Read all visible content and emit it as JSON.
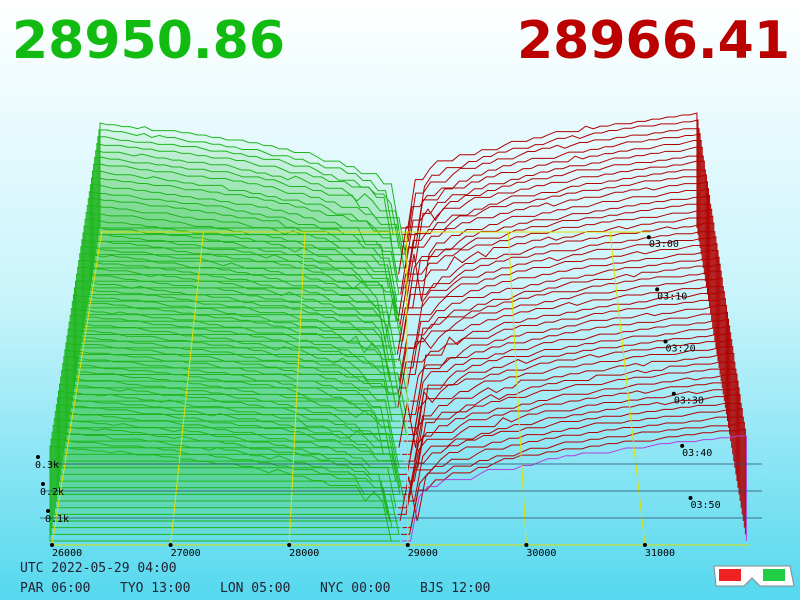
{
  "bid_price": "28950.86",
  "ask_price": "28966.41",
  "price_axis": {
    "xlim": [
      25983,
      31886
    ],
    "ticks": [
      26000,
      27000,
      28000,
      29000,
      30000,
      31000
    ]
  },
  "time_axis": {
    "ticks": [
      "03:00",
      "03:10",
      "03:20",
      "03:30",
      "03:40",
      "03:50"
    ]
  },
  "depth_axis": {
    "ticks": [
      {
        "value": 100,
        "label": "0.1k"
      },
      {
        "value": 200,
        "label": "0.2k"
      },
      {
        "value": 300,
        "label": "0.3k"
      }
    ]
  },
  "utc": "UTC 2022-05-29 04:00",
  "cities": [
    "PAR 06:00",
    "TYO 13:00",
    "LON 05:00",
    "NYC 00:00",
    "BJS 12:00"
  ]
}
